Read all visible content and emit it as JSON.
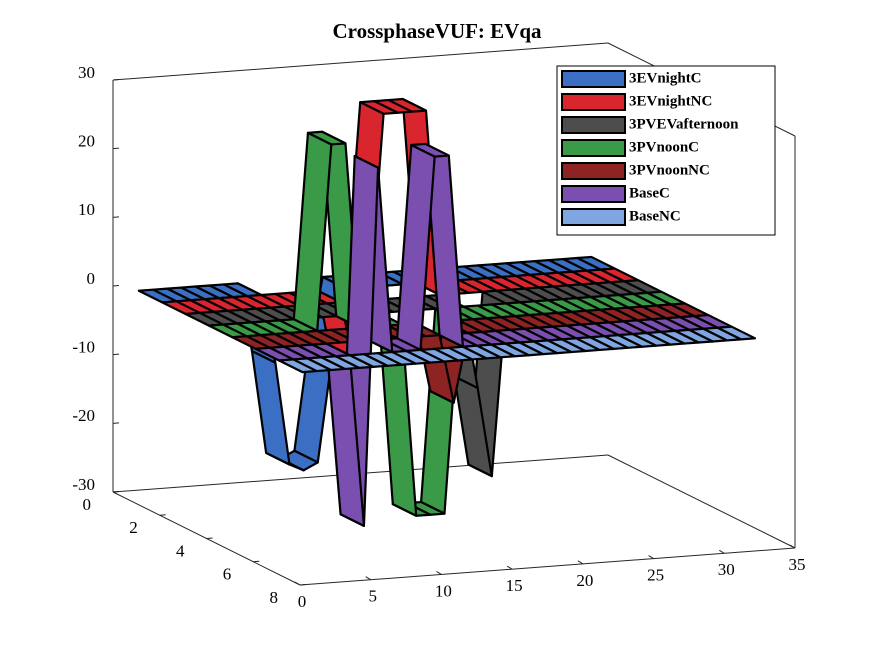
{
  "chart_data": {
    "type": "surface3d",
    "title": "CrossphaseVUF: EVqa",
    "x": [
      1,
      2,
      3,
      4,
      5,
      6,
      7,
      8,
      9,
      10,
      11,
      12,
      13,
      14,
      15,
      16,
      17,
      18,
      19,
      20,
      21,
      22,
      23,
      24,
      25,
      26,
      27,
      28,
      29,
      30,
      31,
      32,
      33
    ],
    "series": [
      {
        "name": "3EVnightC",
        "color": "#3a6fc4",
        "values": [
          0,
          0,
          0,
          0,
          0,
          0,
          0,
          0,
          -10,
          -25,
          -26,
          -25,
          -10,
          0,
          0,
          0,
          0,
          0,
          0,
          0,
          0,
          0,
          0,
          0,
          0,
          0,
          0,
          0,
          0,
          0,
          0,
          0,
          0
        ]
      },
      {
        "name": "3EVnightNC",
        "color": "#d9262e",
        "values": [
          0,
          0,
          0,
          0,
          0,
          0,
          0,
          0,
          0,
          0,
          0,
          0,
          -10,
          0,
          27,
          27,
          27,
          27,
          0,
          0,
          0,
          0,
          0,
          0,
          0,
          0,
          0,
          0,
          0,
          0,
          0,
          0,
          0
        ]
      },
      {
        "name": "3PVEVafternoon",
        "color": "#4d4d4d",
        "values": [
          0,
          0,
          0,
          0,
          0,
          0,
          0,
          0,
          0,
          0,
          0,
          0,
          0,
          0,
          0,
          0,
          0,
          0,
          0,
          -12,
          -25,
          0,
          0,
          0,
          0,
          0,
          0,
          0,
          0,
          0,
          0,
          0,
          0
        ]
      },
      {
        "name": "3PVnoonC",
        "color": "#3a9a47",
        "values": [
          0,
          0,
          0,
          0,
          0,
          0,
          0,
          27,
          27,
          0,
          0,
          0,
          0,
          -28,
          -28,
          -28,
          0,
          0,
          0,
          0,
          0,
          0,
          0,
          0,
          0,
          0,
          0,
          0,
          0,
          0,
          0,
          0,
          0
        ]
      },
      {
        "name": "3PVnoonNC",
        "color": "#8e2323",
        "values": [
          0,
          0,
          0,
          0,
          0,
          0,
          0,
          0,
          0,
          0,
          0,
          0,
          0,
          0,
          -10,
          0,
          0,
          0,
          0,
          0,
          0,
          0,
          0,
          0,
          0,
          0,
          0,
          0,
          0,
          0,
          0,
          0,
          0
        ]
      },
      {
        "name": "BaseC",
        "color": "#7b4fb0",
        "values": [
          0,
          0,
          0,
          0,
          0,
          0,
          -25,
          27,
          0,
          0,
          0,
          28,
          28,
          0,
          0,
          0,
          0,
          0,
          0,
          0,
          0,
          0,
          0,
          0,
          0,
          0,
          0,
          0,
          0,
          0,
          0,
          0,
          0
        ]
      },
      {
        "name": "BaseNC",
        "color": "#7fa6e0",
        "values": [
          0,
          0,
          0,
          0,
          0,
          0,
          0,
          0,
          0,
          0,
          0,
          0,
          0,
          0,
          0,
          0,
          0,
          0,
          0,
          0,
          0,
          0,
          0,
          0,
          0,
          0,
          0,
          0,
          0,
          0,
          0,
          0,
          0
        ]
      }
    ],
    "xlim": [
      0,
      35
    ],
    "xticks": [
      0,
      5,
      10,
      15,
      20,
      25,
      30,
      35
    ],
    "ylim": [
      0,
      8
    ],
    "yticks": [
      0,
      2,
      4,
      6,
      8
    ],
    "zlim": [
      -30,
      30
    ],
    "zticks": [
      -30,
      -20,
      -10,
      0,
      10,
      20,
      30
    ],
    "legend": "upper right"
  }
}
